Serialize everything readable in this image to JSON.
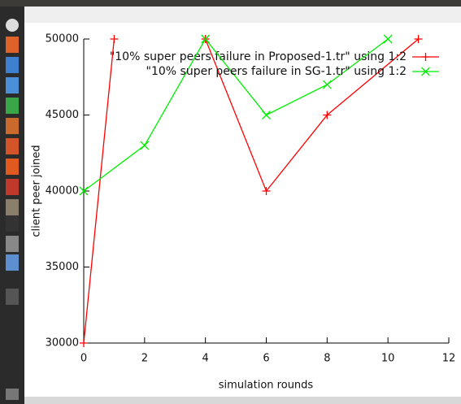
{
  "chart_data": {
    "type": "line",
    "xlabel": "simulation rounds",
    "ylabel": "client peer joined",
    "xlim": [
      0,
      12
    ],
    "xticks": [
      0,
      2,
      4,
      6,
      8,
      10,
      12
    ],
    "ylim": [
      30000,
      50000
    ],
    "yticks": [
      30000,
      35000,
      40000,
      45000,
      50000
    ],
    "legend": "top-right",
    "series": [
      {
        "name": "\"10% super peers failure in Proposed-1.tr\" using 1:2",
        "color": "#ff0000",
        "marker": "+",
        "x": [
          0,
          1,
          2,
          4,
          6,
          8,
          11
        ],
        "values": [
          30000,
          50000,
          null,
          50000,
          40000,
          45000,
          50000
        ]
      },
      {
        "name": "\"10% super peers failure in SG-1.tr\" using 1:2",
        "color": "#00ee00",
        "marker": "x",
        "x": [
          0,
          2,
          4,
          6,
          8,
          10
        ],
        "values": [
          40000,
          43000,
          50000,
          45000,
          47000,
          50000
        ]
      }
    ]
  }
}
